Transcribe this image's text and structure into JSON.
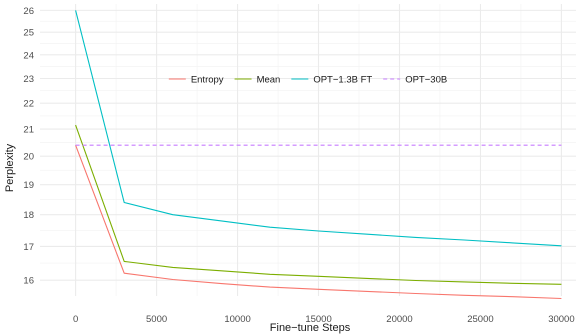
{
  "chart_data": {
    "type": "line",
    "title": "",
    "xlabel": "Fine−tune Steps",
    "ylabel": "Perplexity",
    "xlim": [
      -2200,
      30900
    ],
    "ylim": [
      15.55,
      26.3
    ],
    "y_scale": "log",
    "grid": true,
    "legend_position": "top-center",
    "x_ticks": [
      0,
      5000,
      10000,
      15000,
      20000,
      25000,
      30000
    ],
    "x_tick_labels": [
      "0",
      "5000",
      "10000",
      "15000",
      "20000",
      "25000",
      "30000"
    ],
    "y_ticks": [
      16,
      17,
      18,
      19,
      20,
      21,
      22,
      23,
      24,
      25,
      26
    ],
    "y_tick_labels": [
      "16",
      "17",
      "18",
      "19",
      "20",
      "21",
      "22",
      "23",
      "24",
      "25",
      "26"
    ],
    "series": [
      {
        "name": "Entropy",
        "color": "#F8766D",
        "dashed": false,
        "x": [
          0,
          3000,
          6000,
          9000,
          12000,
          15000,
          18000,
          21000,
          24000,
          27000,
          30000
        ],
        "y": [
          20.4,
          16.2,
          16.02,
          15.9,
          15.8,
          15.74,
          15.68,
          15.62,
          15.57,
          15.53,
          15.48
        ]
      },
      {
        "name": "Mean",
        "color": "#7CAE00",
        "dashed": false,
        "x": [
          0,
          3000,
          6000,
          9000,
          12000,
          15000,
          18000,
          21000,
          24000,
          27000,
          30000
        ],
        "y": [
          21.15,
          16.55,
          16.37,
          16.27,
          16.17,
          16.11,
          16.05,
          15.99,
          15.95,
          15.91,
          15.88
        ]
      },
      {
        "name": "OPT−1.3B FT",
        "color": "#00BFC4",
        "dashed": false,
        "x": [
          0,
          3000,
          6000,
          9000,
          12000,
          15000,
          18000,
          21000,
          24000,
          27000,
          30000
        ],
        "y": [
          26.0,
          18.4,
          18.0,
          17.8,
          17.6,
          17.48,
          17.38,
          17.28,
          17.2,
          17.11,
          17.02
        ]
      },
      {
        "name": "OPT−30B",
        "color": "#C77CFF",
        "dashed": true,
        "x": [
          0,
          30000
        ],
        "y": [
          20.4,
          20.4
        ]
      }
    ]
  }
}
